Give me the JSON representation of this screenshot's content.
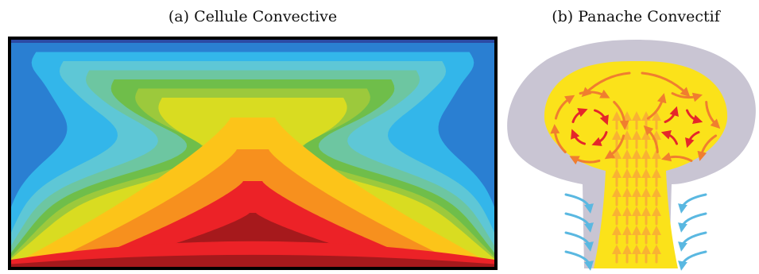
{
  "panel_a": {
    "caption": "(a) Cellule Convective",
    "colors": {
      "border": "#000000",
      "level_0": "#2c4aa5",
      "level_1": "#2a7fd2",
      "level_2": "#33b6ea",
      "level_3": "#5ec7d6",
      "level_4": "#6dc6a1",
      "level_5": "#6fbe4a",
      "level_6": "#9cc93c",
      "level_7": "#d9dc21",
      "level_8": "#fcc419",
      "level_9": "#f7901e",
      "level_10": "#ec2227",
      "level_11": "#a6191c"
    }
  },
  "panel_b": {
    "caption": "(b) Panache Convectif",
    "colors": {
      "environment": "#c9c5d3",
      "plume": "#fbe21a",
      "upflow_arrow": "#f9b233",
      "vortex_outer_arrow": "#f07e2f",
      "vortex_inner_arrow": "#e5262b",
      "inflow_arrow": "#5ab8e1"
    }
  }
}
